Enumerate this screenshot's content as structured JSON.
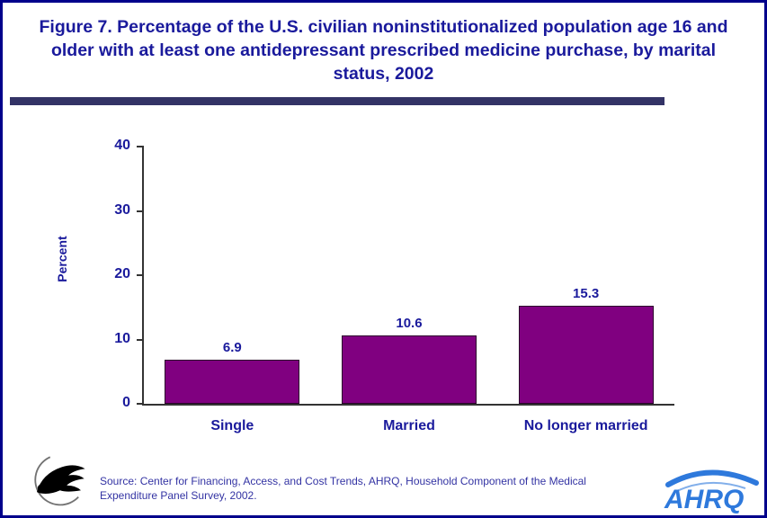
{
  "page": {
    "title": "Figure 7. Percentage of the U.S. civilian noninstitutionalized population age 16 and older with at least one antidepressant prescribed medicine purchase, by marital status, 2002",
    "source_text": "Source: Center for Financing, Access, and Cost Trends, AHRQ, Household Component of the Medical Expenditure Panel Survey, 2002."
  },
  "chart_data": {
    "type": "bar",
    "title": "Figure 7. Percentage of the U.S. civilian noninstitutionalized population age 16 and older with at least one antidepressant prescribed medicine purchase, by marital status, 2002",
    "categories": [
      "Single",
      "Married",
      "No longer married"
    ],
    "values": [
      6.9,
      10.6,
      15.3
    ],
    "xlabel": "",
    "ylabel": "Percent",
    "ylim": [
      0,
      40
    ],
    "yticks": [
      0,
      10,
      20,
      30,
      40
    ],
    "grid": false,
    "legend": "none",
    "bar_color": "#800080"
  },
  "logos": {
    "ahrq_label": "AHRQ",
    "hhs_name": "hhs-logo"
  },
  "colors": {
    "navy": "#1A1A9C",
    "divider": "#333366",
    "border": "#00008B",
    "bar_purple": "#800080",
    "axis": "#333333",
    "source_text": "#3333A3",
    "ahrq_blue": "#2E79DC",
    "background": "#FFFFFF"
  }
}
